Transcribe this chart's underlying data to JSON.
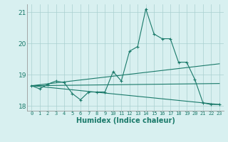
{
  "xlabel": "Humidex (Indice chaleur)",
  "background_color": "#d8f0f0",
  "grid_color": "#aacfcf",
  "line_color": "#1a7a6a",
  "xlim": [
    -0.5,
    23.5
  ],
  "ylim": [
    17.85,
    21.25
  ],
  "yticks": [
    18,
    19,
    20,
    21
  ],
  "xticks": [
    0,
    1,
    2,
    3,
    4,
    5,
    6,
    7,
    8,
    9,
    10,
    11,
    12,
    13,
    14,
    15,
    16,
    17,
    18,
    19,
    20,
    21,
    22,
    23
  ],
  "y_main": [
    18.65,
    18.55,
    18.7,
    18.8,
    18.75,
    18.4,
    18.2,
    18.45,
    18.45,
    18.45,
    19.1,
    18.8,
    19.75,
    19.9,
    21.1,
    20.3,
    20.15,
    20.15,
    19.4,
    19.4,
    18.85,
    18.1,
    18.05,
    18.05
  ],
  "trend1": [
    18.65,
    19.35
  ],
  "trend2": [
    18.65,
    18.72
  ],
  "trend3": [
    18.65,
    18.05
  ]
}
